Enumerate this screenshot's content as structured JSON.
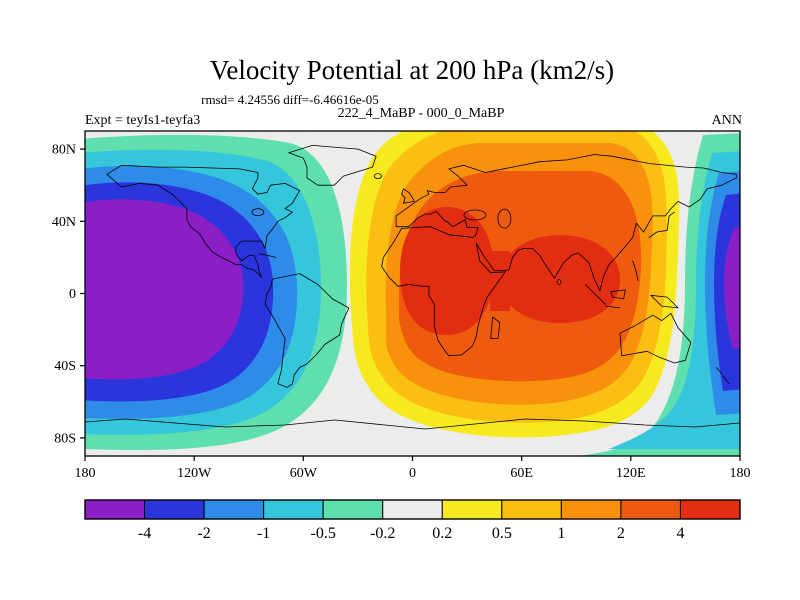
{
  "header": {
    "title": "Velocity Potential at 200 hPa (km2/s)",
    "stats": "rmsd= 4.24556 diff=-6.46616e-05",
    "comparison": "222_4_MaBP - 000_0_MaBP",
    "experiment": "Expt = teyIs1-teyfa3",
    "season": "ANN"
  },
  "chart_data": {
    "type": "heatmap",
    "subtype": "filled-contour world map, equirectangular",
    "title": "Velocity Potential at 200 hPa (km2/s)",
    "variable": "velocity potential difference",
    "level": "200 hPa",
    "units": "km2/s",
    "rmsd": "4.24556",
    "diff": "-6.46616e-05",
    "comparison": "222_4_MaBP - 000_0_MaBP",
    "experiment": "teyIs1-teyfa3",
    "season": "ANN",
    "x_axis": {
      "tick_labels": [
        "180",
        "120W",
        "60W",
        "0",
        "60E",
        "120E",
        "180"
      ],
      "range": [
        "180W",
        "180E"
      ]
    },
    "y_axis": {
      "tick_labels": [
        "80N",
        "40N",
        "0",
        "40S",
        "80S"
      ],
      "range": [
        "90S",
        "90N"
      ]
    },
    "colorbar": {
      "boundary_labels": [
        "-4",
        "-2",
        "-1",
        "-0.5",
        "-0.2",
        "0.2",
        "0.5",
        "1",
        "2",
        "4"
      ],
      "colors": [
        "#8a1fc8",
        "#2a35dc",
        "#2e8be8",
        "#35c6dc",
        "#5fdfae",
        "#ececec",
        "#f6ea1e",
        "#fbbe12",
        "#f8920c",
        "#ef5b0e",
        "#e32d12"
      ]
    },
    "pattern": [
      "negative center below -4 (purple) over the Pacific, appearing at both the west and east map edges near the date line",
      "positive center above 4 (red) over Africa and the Indian Ocean region",
      "near-zero white band separating the two cells over the eastern Pacific/Americas and along high latitudes"
    ]
  }
}
